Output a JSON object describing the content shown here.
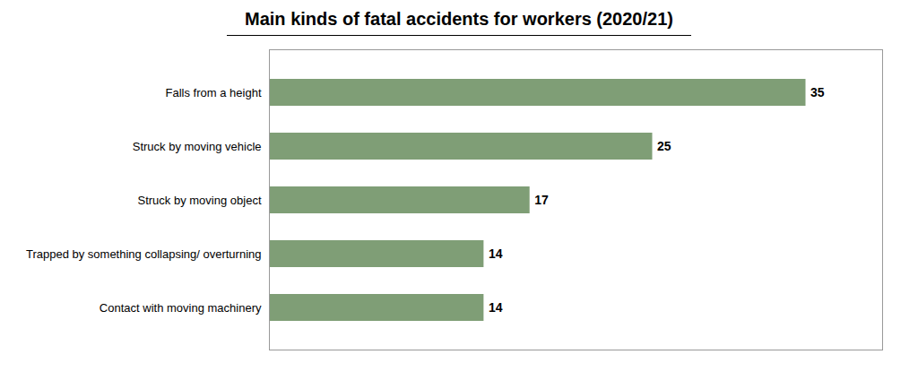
{
  "chart_data": {
    "type": "bar",
    "orientation": "horizontal",
    "title": "Main kinds of fatal accidents for workers (2020/21)",
    "categories": [
      "Contact with moving machinery",
      "Trapped by something collapsing/ overturning",
      "Struck by moving object",
      "Struck by moving vehicle",
      "Falls from a height"
    ],
    "values": [
      14,
      14,
      17,
      25,
      35
    ],
    "color": "#7f9e76",
    "xlim": [
      0,
      40
    ],
    "data_labels": true,
    "tick_labels": "y",
    "grid": false
  }
}
